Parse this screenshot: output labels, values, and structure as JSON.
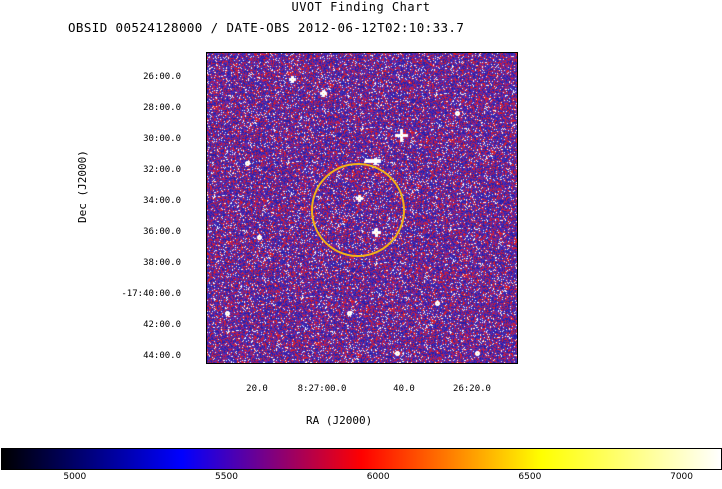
{
  "chart_data": {
    "type": "heatmap",
    "title": "UVOT Finding Chart",
    "subtitle": "OBSID 00524128000 / DATE-OBS 2012-06-12T02:10:33.7",
    "xlabel": "RA (J2000)",
    "ylabel": "Dec (J2000)",
    "x_ticks": [
      "20.0",
      "8:27:00.0",
      "40.0",
      "26:20.0"
    ],
    "y_ticks": [
      "26:00.0",
      "28:00.0",
      "30:00.0",
      "32:00.0",
      "34:00.0",
      "36:00.0",
      "38:00.0",
      "-17:40:00.0",
      "42:00.0",
      "44:00.0"
    ],
    "colorbar": {
      "ticks": [
        5000,
        5500,
        6000,
        6500,
        7000
      ],
      "range": [
        4760,
        7130
      ],
      "colormap": [
        "#000000",
        "#0000ff",
        "#ff0000",
        "#ffff00",
        "#ffffff"
      ]
    },
    "source_region": {
      "shape": "circle",
      "color": "#f0b21a"
    },
    "grid": false
  }
}
